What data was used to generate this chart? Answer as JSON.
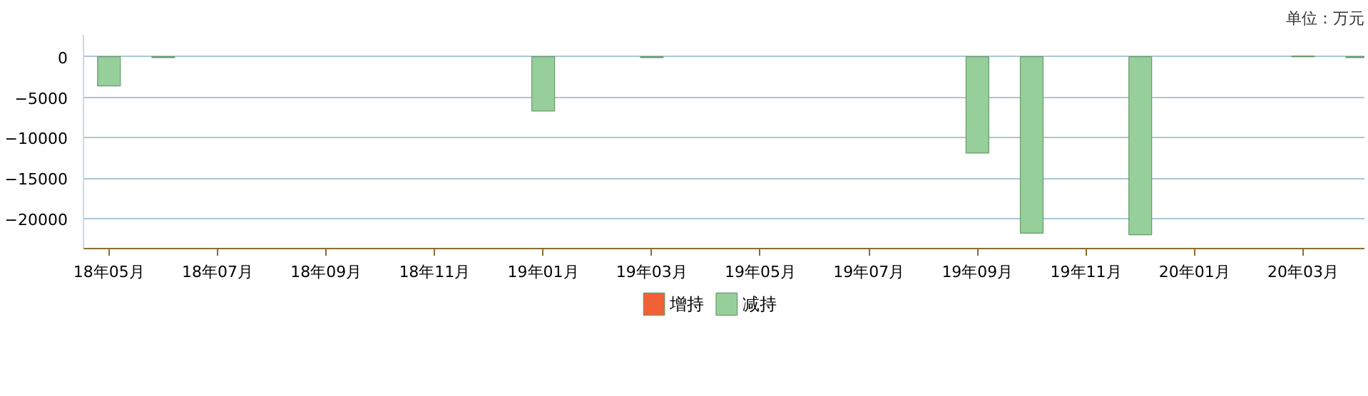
{
  "chart_data": {
    "type": "bar",
    "annotations": [
      "单位：万元"
    ],
    "categories": [
      "18年05月",
      null,
      "18年07月",
      null,
      "18年09月",
      null,
      "18年11月",
      null,
      "19年01月",
      null,
      "19年03月",
      null,
      "19年05月",
      null,
      "19年07月",
      null,
      "19年09月",
      null,
      "19年11月",
      null,
      "20年01月",
      null,
      "20年03月",
      null
    ],
    "series": [
      {
        "name": "增持",
        "color": "#f26135",
        "values": [
          null,
          null,
          null,
          null,
          null,
          null,
          null,
          null,
          null,
          null,
          null,
          null,
          null,
          null,
          null,
          null,
          null,
          null,
          null,
          null,
          null,
          null,
          100,
          null
        ]
      },
      {
        "name": "减持",
        "color": "#96cf9a",
        "values": [
          -3600,
          -100,
          null,
          null,
          null,
          null,
          null,
          null,
          -6700,
          null,
          -100,
          null,
          null,
          null,
          null,
          null,
          -11900,
          -21800,
          null,
          -22000,
          null,
          null,
          null,
          -100
        ]
      }
    ],
    "ylim": [
      -23700,
      2700
    ],
    "yticks": [
      0,
      -5000,
      -10000,
      -15000,
      -20000
    ],
    "grid": "y",
    "legend": "bottom"
  }
}
